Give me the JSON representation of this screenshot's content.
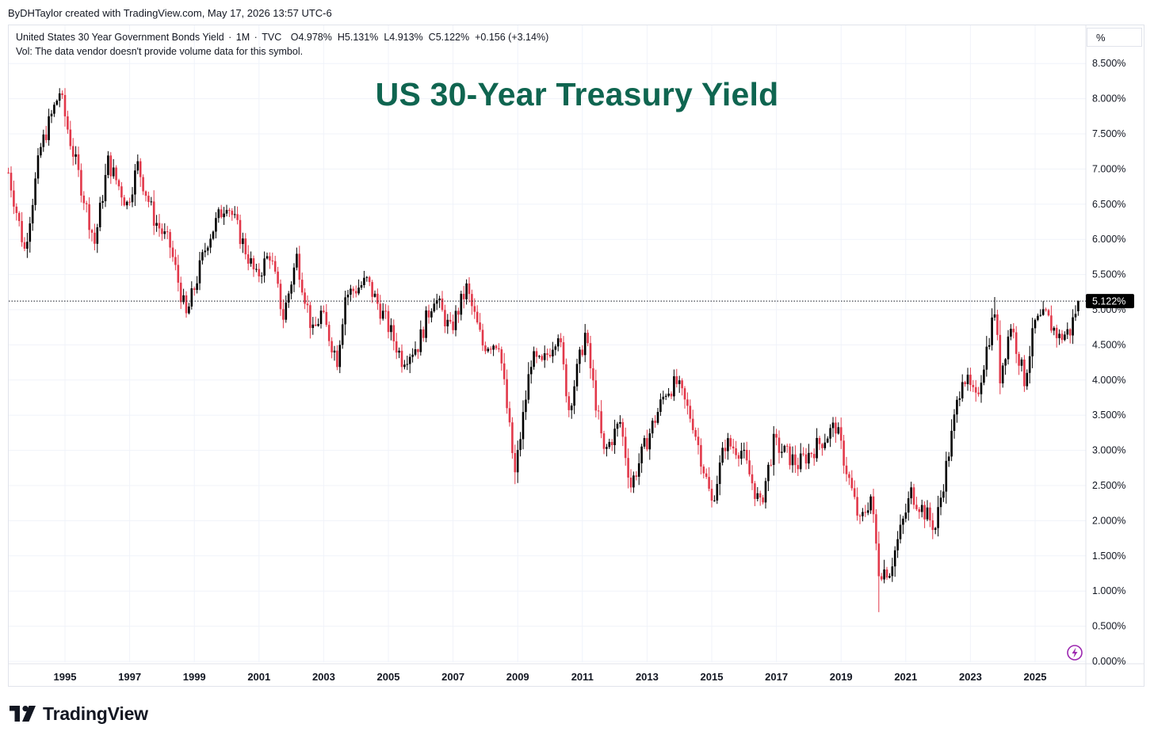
{
  "header": {
    "credit": "ByDHTaylor created with TradingView.com, May 17, 2026 13:57 UTC-6"
  },
  "legend": {
    "symbol": "United States 30 Year Government Bonds Yield",
    "interval": "1M",
    "source": "TVC",
    "open": "O4.978%",
    "high": "H5.131%",
    "low": "L4.913%",
    "close": "C5.122%",
    "change": "+0.156 (+3.14%)",
    "volume_note": "Vol: The data vendor doesn't provide volume data for this symbol."
  },
  "scale_unit": "%",
  "last_price_label": "5.122%",
  "brand": {
    "name": "TradingView",
    "icon": "tradingview-logo-icon"
  },
  "icons": {
    "alert": "lightning-alert-icon"
  },
  "colors": {
    "title": "#0f6550",
    "up_candle": "#000000",
    "down_candle": "#e2384a",
    "grid": "#f0f3fa",
    "price_tag": "#000000"
  },
  "chart_data": {
    "type": "candlestick",
    "title": "US 30-Year Treasury Yield",
    "interval": "monthly",
    "ylim": [
      0,
      8.5
    ],
    "y_ticks": [
      "0.000%",
      "0.500%",
      "1.000%",
      "1.500%",
      "2.000%",
      "2.500%",
      "3.000%",
      "3.500%",
      "4.000%",
      "4.500%",
      "5.000%",
      "5.500%",
      "6.000%",
      "6.500%",
      "7.000%",
      "7.500%",
      "8.000%",
      "8.500%"
    ],
    "x_ticks": [
      "1995",
      "1997",
      "1999",
      "2001",
      "2003",
      "2005",
      "2007",
      "2009",
      "2011",
      "2013",
      "2015",
      "2017",
      "2019",
      "2021",
      "2023",
      "2025"
    ],
    "x_range": [
      "1993-04",
      "2026-05"
    ],
    "last_value": 5.122,
    "last_ohlc": {
      "open": 4.978,
      "high": 5.131,
      "low": 4.913,
      "close": 5.122
    },
    "path": [
      [
        "1993-04",
        6.95
      ],
      [
        "1993-10",
        5.85
      ],
      [
        "1994-04",
        7.3
      ],
      [
        "1994-11",
        8.1
      ],
      [
        "1995-03",
        7.4
      ],
      [
        "1995-12",
        5.95
      ],
      [
        "1996-05",
        7.1
      ],
      [
        "1996-12",
        6.5
      ],
      [
        "1997-04",
        7.05
      ],
      [
        "1997-10",
        6.3
      ],
      [
        "1998-04",
        5.9
      ],
      [
        "1998-10",
        4.9
      ],
      [
        "1999-06",
        6.0
      ],
      [
        "2000-01",
        6.55
      ],
      [
        "2000-12",
        5.45
      ],
      [
        "2001-05",
        5.8
      ],
      [
        "2001-10",
        4.9
      ],
      [
        "2002-03",
        5.75
      ],
      [
        "2002-09",
        4.65
      ],
      [
        "2002-12",
        4.95
      ],
      [
        "2003-06",
        4.3
      ],
      [
        "2003-09",
        5.2
      ],
      [
        "2004-05",
        5.4
      ],
      [
        "2004-12",
        4.85
      ],
      [
        "2005-06",
        4.3
      ],
      [
        "2005-12",
        4.5
      ],
      [
        "2006-06",
        5.2
      ],
      [
        "2006-12",
        4.7
      ],
      [
        "2007-06",
        5.3
      ],
      [
        "2007-12",
        4.5
      ],
      [
        "2008-06",
        4.55
      ],
      [
        "2008-12",
        2.65
      ],
      [
        "2009-06",
        4.3
      ],
      [
        "2009-10",
        4.2
      ],
      [
        "2010-04",
        4.7
      ],
      [
        "2010-08",
        3.6
      ],
      [
        "2011-02",
        4.65
      ],
      [
        "2011-09",
        2.95
      ],
      [
        "2012-03",
        3.4
      ],
      [
        "2012-07",
        2.5
      ],
      [
        "2013-01",
        3.15
      ],
      [
        "2013-08",
        3.85
      ],
      [
        "2013-12",
        3.95
      ],
      [
        "2014-06",
        3.4
      ],
      [
        "2015-01",
        2.25
      ],
      [
        "2015-06",
        3.1
      ],
      [
        "2015-12",
        3.0
      ],
      [
        "2016-07",
        2.2
      ],
      [
        "2016-12",
        3.1
      ],
      [
        "2017-09",
        2.8
      ],
      [
        "2018-05",
        3.1
      ],
      [
        "2018-11",
        3.35
      ],
      [
        "2019-08",
        1.95
      ],
      [
        "2019-12",
        2.35
      ],
      [
        "2020-03",
        1.3
      ],
      [
        "2020-07",
        1.3
      ],
      [
        "2021-03",
        2.4
      ],
      [
        "2021-12",
        1.9
      ],
      [
        "2022-06",
        3.2
      ],
      [
        "2022-10",
        4.1
      ],
      [
        "2023-03",
        3.7
      ],
      [
        "2023-10",
        5.0
      ],
      [
        "2023-12",
        4.05
      ],
      [
        "2024-04",
        4.8
      ],
      [
        "2024-09",
        4.0
      ],
      [
        "2025-01",
        4.8
      ],
      [
        "2025-05",
        4.9
      ],
      [
        "2025-10",
        4.6
      ],
      [
        "2026-02",
        4.7
      ],
      [
        "2026-04",
        4.98
      ],
      [
        "2026-05",
        5.122
      ]
    ],
    "notable_extremes": {
      "1994-11": {
        "high": 8.15
      },
      "2008-12": {
        "low": 2.52
      },
      "2020-03": {
        "low": 0.7
      },
      "2023-10": {
        "high": 5.18
      }
    }
  }
}
